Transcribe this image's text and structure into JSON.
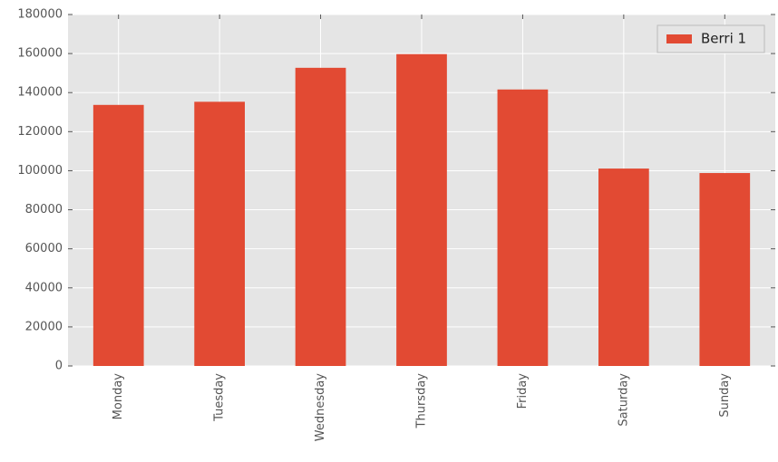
{
  "chart_data": {
    "type": "bar",
    "categories": [
      "Monday",
      "Tuesday",
      "Wednesday",
      "Thursday",
      "Friday",
      "Saturday",
      "Sunday"
    ],
    "series": [
      {
        "name": "Berri 1",
        "color": "#e24a33",
        "values": [
          133700,
          135300,
          152700,
          159700,
          141600,
          101100,
          98800
        ]
      }
    ],
    "ylim": [
      0,
      180000
    ],
    "yticks": [
      0,
      20000,
      40000,
      60000,
      80000,
      100000,
      120000,
      140000,
      160000,
      180000
    ],
    "grid": true,
    "legend": "upper right"
  }
}
